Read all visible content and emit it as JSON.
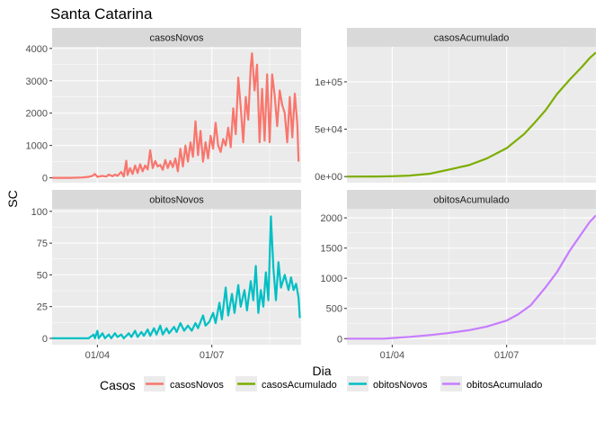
{
  "chart_data": {
    "type": "line",
    "title": "Santa Catarina",
    "xlabel": "Dia",
    "ylabel": "SC",
    "legend": {
      "title": "Casos",
      "position": "bottom",
      "entries": [
        "casosNovos",
        "casosAcumulado",
        "obitosNovos",
        "obitosAcumulado"
      ]
    },
    "x_ticks": [
      "01/04",
      "01/07"
    ],
    "x_range": [
      "2020-02-25",
      "2020-09-10"
    ],
    "grid": true,
    "facets": [
      {
        "strip": "casosNovos",
        "color": "#F8766D",
        "ylim": [
          -150,
          4050
        ],
        "y_ticks": [
          0,
          1000,
          2000,
          3000,
          4000
        ],
        "y_tick_labels": [
          "0",
          "1000",
          "2000",
          "3000",
          "4000"
        ],
        "points": [
          [
            "2020-02-25",
            0
          ],
          [
            "2020-03-10",
            0
          ],
          [
            "2020-03-20",
            10
          ],
          [
            "2020-03-25",
            30
          ],
          [
            "2020-03-28",
            60
          ],
          [
            "2020-03-30",
            120
          ],
          [
            "2020-04-01",
            30
          ],
          [
            "2020-04-05",
            60
          ],
          [
            "2020-04-08",
            40
          ],
          [
            "2020-04-10",
            100
          ],
          [
            "2020-04-13",
            50
          ],
          [
            "2020-04-15",
            100
          ],
          [
            "2020-04-17",
            60
          ],
          [
            "2020-04-20",
            180
          ],
          [
            "2020-04-22",
            40
          ],
          [
            "2020-04-24",
            530
          ],
          [
            "2020-04-25",
            90
          ],
          [
            "2020-04-27",
            300
          ],
          [
            "2020-04-29",
            120
          ],
          [
            "2020-05-01",
            380
          ],
          [
            "2020-05-03",
            150
          ],
          [
            "2020-05-05",
            420
          ],
          [
            "2020-05-07",
            200
          ],
          [
            "2020-05-09",
            380
          ],
          [
            "2020-05-11",
            260
          ],
          [
            "2020-05-13",
            850
          ],
          [
            "2020-05-15",
            300
          ],
          [
            "2020-05-17",
            520
          ],
          [
            "2020-05-19",
            350
          ],
          [
            "2020-05-21",
            400
          ],
          [
            "2020-05-23",
            250
          ],
          [
            "2020-05-25",
            550
          ],
          [
            "2020-05-27",
            300
          ],
          [
            "2020-05-29",
            520
          ],
          [
            "2020-05-31",
            330
          ],
          [
            "2020-06-02",
            600
          ],
          [
            "2020-06-04",
            200
          ],
          [
            "2020-06-06",
            900
          ],
          [
            "2020-06-08",
            350
          ],
          [
            "2020-06-10",
            1000
          ],
          [
            "2020-06-12",
            500
          ],
          [
            "2020-06-14",
            1100
          ],
          [
            "2020-06-16",
            650
          ],
          [
            "2020-06-18",
            1750
          ],
          [
            "2020-06-20",
            700
          ],
          [
            "2020-06-22",
            1450
          ],
          [
            "2020-06-24",
            500
          ],
          [
            "2020-06-26",
            1100
          ],
          [
            "2020-06-28",
            600
          ],
          [
            "2020-06-30",
            1300
          ],
          [
            "2020-07-02",
            900
          ],
          [
            "2020-07-04",
            1700
          ],
          [
            "2020-07-06",
            1000
          ],
          [
            "2020-07-08",
            800
          ],
          [
            "2020-07-10",
            1200
          ],
          [
            "2020-07-12",
            1000
          ],
          [
            "2020-07-14",
            1550
          ],
          [
            "2020-07-16",
            950
          ],
          [
            "2020-07-18",
            2150
          ],
          [
            "2020-07-20",
            1350
          ],
          [
            "2020-07-22",
            3100
          ],
          [
            "2020-07-24",
            2200
          ],
          [
            "2020-07-26",
            1100
          ],
          [
            "2020-07-28",
            2500
          ],
          [
            "2020-07-30",
            1800
          ],
          [
            "2020-08-01",
            3450
          ],
          [
            "2020-08-02",
            3850
          ],
          [
            "2020-08-04",
            2700
          ],
          [
            "2020-08-06",
            3500
          ],
          [
            "2020-08-08",
            1100
          ],
          [
            "2020-08-10",
            2750
          ],
          [
            "2020-08-12",
            1150
          ],
          [
            "2020-08-14",
            3200
          ],
          [
            "2020-08-16",
            1100
          ],
          [
            "2020-08-18",
            3200
          ],
          [
            "2020-08-20",
            2550
          ],
          [
            "2020-08-22",
            1600
          ],
          [
            "2020-08-24",
            2700
          ],
          [
            "2020-08-26",
            2250
          ],
          [
            "2020-08-28",
            2000
          ],
          [
            "2020-08-30",
            1100
          ],
          [
            "2020-09-01",
            2500
          ],
          [
            "2020-09-03",
            1250
          ],
          [
            "2020-09-05",
            2600
          ],
          [
            "2020-09-07",
            1650
          ],
          [
            "2020-09-08",
            500
          ]
        ]
      },
      {
        "strip": "casosAcumulado",
        "color": "#7CAE00",
        "ylim": [
          -6500,
          137000
        ],
        "y_ticks": [
          0,
          50000,
          100000
        ],
        "y_tick_labels": [
          "0e+00",
          "5e+04",
          "1e+05"
        ],
        "points": [
          [
            "2020-02-25",
            0
          ],
          [
            "2020-03-20",
            50
          ],
          [
            "2020-04-01",
            300
          ],
          [
            "2020-04-15",
            1000
          ],
          [
            "2020-05-01",
            3000
          ],
          [
            "2020-05-15",
            7000
          ],
          [
            "2020-06-01",
            12000
          ],
          [
            "2020-06-15",
            19000
          ],
          [
            "2020-07-01",
            30000
          ],
          [
            "2020-07-15",
            45000
          ],
          [
            "2020-07-22",
            55000
          ],
          [
            "2020-08-01",
            70000
          ],
          [
            "2020-08-10",
            87000
          ],
          [
            "2020-08-20",
            102000
          ],
          [
            "2020-08-30",
            116000
          ],
          [
            "2020-09-05",
            125000
          ],
          [
            "2020-09-10",
            131000
          ]
        ]
      },
      {
        "strip": "obitosNovos",
        "color": "#00BFC4",
        "ylim": [
          -5,
          102
        ],
        "y_ticks": [
          0,
          25,
          50,
          75,
          100
        ],
        "y_tick_labels": [
          "0",
          "25",
          "50",
          "75",
          "100"
        ],
        "points": [
          [
            "2020-02-25",
            0
          ],
          [
            "2020-03-25",
            0
          ],
          [
            "2020-03-29",
            3
          ],
          [
            "2020-03-30",
            0
          ],
          [
            "2020-04-01",
            6
          ],
          [
            "2020-04-02",
            0
          ],
          [
            "2020-04-05",
            4
          ],
          [
            "2020-04-07",
            0
          ],
          [
            "2020-04-10",
            3
          ],
          [
            "2020-04-12",
            0
          ],
          [
            "2020-04-15",
            4
          ],
          [
            "2020-04-17",
            1
          ],
          [
            "2020-04-20",
            3
          ],
          [
            "2020-04-22",
            0
          ],
          [
            "2020-04-26",
            4
          ],
          [
            "2020-04-28",
            1
          ],
          [
            "2020-05-01",
            6
          ],
          [
            "2020-05-03",
            1
          ],
          [
            "2020-05-06",
            5
          ],
          [
            "2020-05-08",
            2
          ],
          [
            "2020-05-11",
            7
          ],
          [
            "2020-05-13",
            2
          ],
          [
            "2020-05-16",
            8
          ],
          [
            "2020-05-18",
            3
          ],
          [
            "2020-05-21",
            10
          ],
          [
            "2020-05-23",
            3
          ],
          [
            "2020-05-26",
            8
          ],
          [
            "2020-05-28",
            4
          ],
          [
            "2020-06-01",
            9
          ],
          [
            "2020-06-03",
            5
          ],
          [
            "2020-06-06",
            12
          ],
          [
            "2020-06-09",
            6
          ],
          [
            "2020-06-12",
            10
          ],
          [
            "2020-06-15",
            6
          ],
          [
            "2020-06-18",
            12
          ],
          [
            "2020-06-20",
            8
          ],
          [
            "2020-06-24",
            18
          ],
          [
            "2020-06-26",
            10
          ],
          [
            "2020-06-29",
            13
          ],
          [
            "2020-07-02",
            20
          ],
          [
            "2020-07-04",
            12
          ],
          [
            "2020-07-07",
            28
          ],
          [
            "2020-07-09",
            15
          ],
          [
            "2020-07-12",
            40
          ],
          [
            "2020-07-14",
            18
          ],
          [
            "2020-07-17",
            35
          ],
          [
            "2020-07-19",
            20
          ],
          [
            "2020-07-22",
            42
          ],
          [
            "2020-07-24",
            25
          ],
          [
            "2020-07-27",
            38
          ],
          [
            "2020-07-29",
            22
          ],
          [
            "2020-08-01",
            45
          ],
          [
            "2020-08-03",
            30
          ],
          [
            "2020-08-05",
            57
          ],
          [
            "2020-08-07",
            20
          ],
          [
            "2020-08-09",
            38
          ],
          [
            "2020-08-11",
            25
          ],
          [
            "2020-08-13",
            52
          ],
          [
            "2020-08-15",
            30
          ],
          [
            "2020-08-17",
            96
          ],
          [
            "2020-08-19",
            55
          ],
          [
            "2020-08-21",
            30
          ],
          [
            "2020-08-23",
            60
          ],
          [
            "2020-08-25",
            40
          ],
          [
            "2020-08-28",
            50
          ],
          [
            "2020-08-31",
            38
          ],
          [
            "2020-09-02",
            48
          ],
          [
            "2020-09-04",
            38
          ],
          [
            "2020-09-06",
            43
          ],
          [
            "2020-09-08",
            32
          ],
          [
            "2020-09-09",
            16
          ]
        ]
      },
      {
        "strip": "obitosAcumulado",
        "color": "#C77CFF",
        "ylim": [
          -100,
          2150
        ],
        "y_ticks": [
          0,
          500,
          1000,
          1500,
          2000
        ],
        "y_tick_labels": [
          "0",
          "500",
          "1000",
          "1500",
          "2000"
        ],
        "points": [
          [
            "2020-02-25",
            0
          ],
          [
            "2020-03-25",
            0
          ],
          [
            "2020-04-01",
            10
          ],
          [
            "2020-04-15",
            30
          ],
          [
            "2020-05-01",
            60
          ],
          [
            "2020-05-15",
            90
          ],
          [
            "2020-06-01",
            140
          ],
          [
            "2020-06-15",
            200
          ],
          [
            "2020-07-01",
            300
          ],
          [
            "2020-07-10",
            400
          ],
          [
            "2020-07-20",
            550
          ],
          [
            "2020-08-01",
            850
          ],
          [
            "2020-08-10",
            1100
          ],
          [
            "2020-08-20",
            1450
          ],
          [
            "2020-08-30",
            1750
          ],
          [
            "2020-09-05",
            1930
          ],
          [
            "2020-09-10",
            2040
          ]
        ]
      }
    ]
  }
}
